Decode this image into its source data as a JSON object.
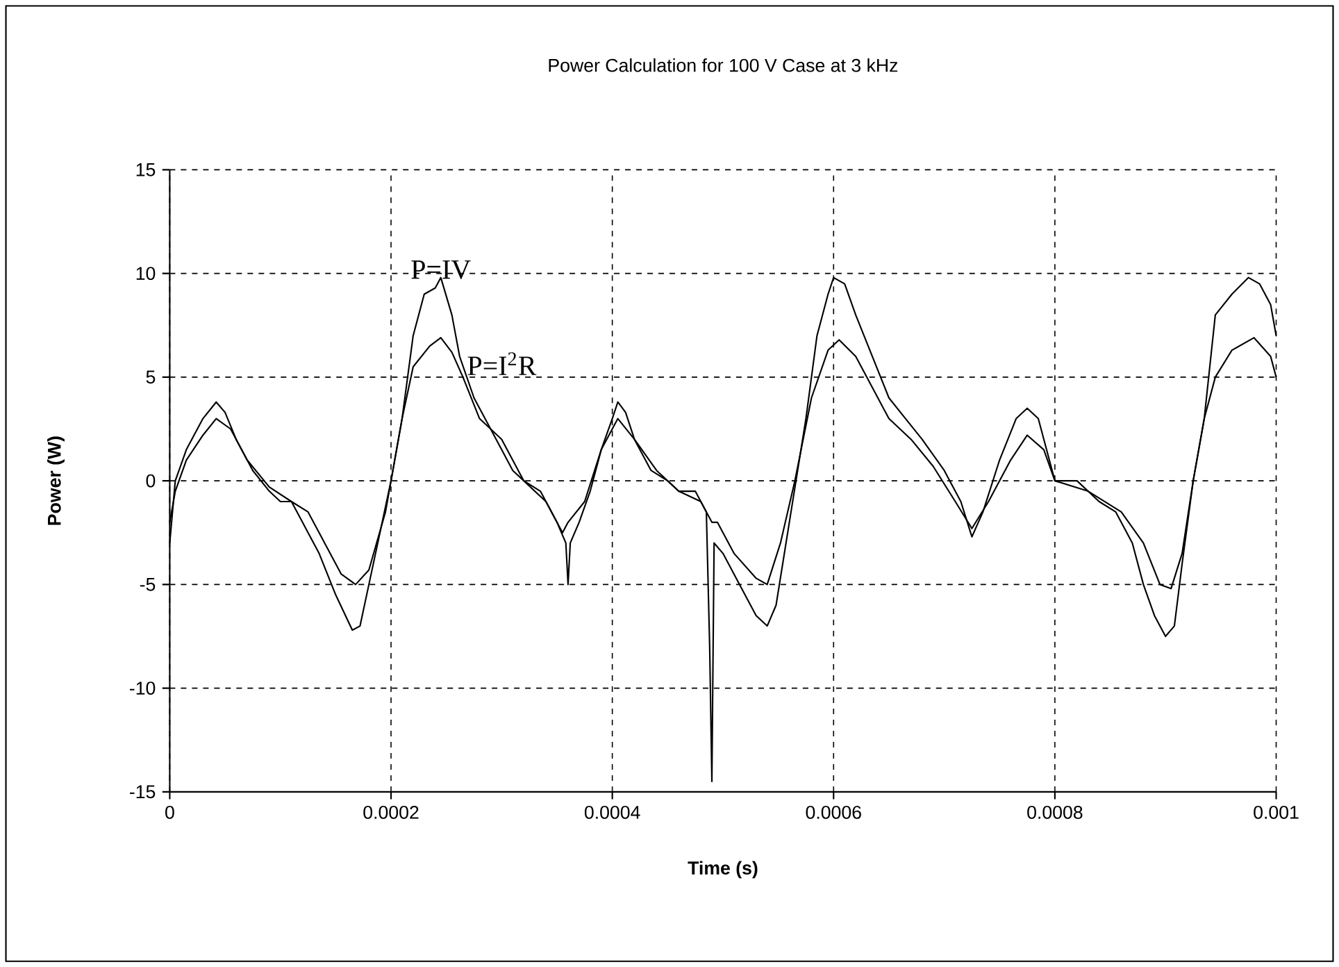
{
  "chart_data": {
    "type": "line",
    "title": "Power Calculation for 100 V Case at 3 kHz",
    "xlabel": "Time (s)",
    "ylabel": "Power (W)",
    "xlim": [
      0,
      0.001
    ],
    "ylim": [
      -15,
      15
    ],
    "xticks": [
      0,
      0.0002,
      0.0004,
      0.0006,
      0.0008,
      0.001
    ],
    "yticks": [
      -15,
      -10,
      -5,
      0,
      5,
      10,
      15
    ],
    "grid": true,
    "marker": "none",
    "line_style": "solid",
    "series": [
      {
        "name": "P=IV",
        "color": "#000000",
        "x": [
          0,
          5e-06,
          1.5e-05,
          3e-05,
          4.2e-05,
          5e-05,
          6e-05,
          7.5e-05,
          9e-05,
          0.0001,
          0.00011,
          0.00012,
          0.000135,
          0.00015,
          0.000165,
          0.000172,
          0.00018,
          0.00019,
          0.0002,
          0.00021,
          0.00022,
          0.00023,
          0.00024,
          0.000245,
          0.000255,
          0.000262,
          0.000275,
          0.00029,
          0.0003,
          0.00031,
          0.00032,
          0.000335,
          0.00035,
          0.000358,
          0.00036,
          0.000362,
          0.00037,
          0.00038,
          0.00039,
          0.0004,
          0.000405,
          0.000412,
          0.00042,
          0.000435,
          0.00045,
          0.00046,
          0.000475,
          0.000485,
          0.000488,
          0.00049,
          0.000492,
          0.0005,
          0.00051,
          0.00053,
          0.00054,
          0.000548,
          0.00056,
          0.000575,
          0.000585,
          0.000595,
          0.0006,
          0.00061,
          0.00062,
          0.000635,
          0.00065,
          0.000665,
          0.00068,
          0.0007,
          0.000715,
          0.000725,
          0.000735,
          0.00075,
          0.000765,
          0.000775,
          0.000785,
          0.000795,
          0.0008,
          0.00082,
          0.00084,
          0.000855,
          0.00087,
          0.00088,
          0.00089,
          0.0009,
          0.000908,
          0.000915,
          0.000925,
          0.000935,
          0.000945,
          0.00096,
          0.000975,
          0.000985,
          0.000995,
          0.001
        ],
        "values": [
          -3,
          0,
          1.5,
          3,
          3.8,
          3.3,
          2,
          0.5,
          -0.5,
          -1,
          -1,
          -2,
          -3.5,
          -5.5,
          -7.2,
          -7,
          -5,
          -2.5,
          0,
          3,
          7,
          9,
          9.3,
          9.8,
          8,
          6,
          4,
          2.5,
          1.5,
          0.5,
          0,
          -0.5,
          -2,
          -3,
          -5,
          -3,
          -2,
          -0.5,
          1.5,
          3,
          3.8,
          3.3,
          2,
          0.5,
          0,
          -0.5,
          -0.5,
          -1.5,
          -8,
          -14.5,
          -3,
          -3.5,
          -4.5,
          -6.5,
          -7,
          -6,
          -2,
          3,
          7,
          9,
          9.8,
          9.5,
          8,
          6,
          4,
          3,
          2,
          0.5,
          -1,
          -2.7,
          -1.5,
          1,
          3,
          3.5,
          3,
          1,
          0,
          0,
          -1,
          -1.5,
          -3,
          -5,
          -6.5,
          -7.5,
          -7,
          -4,
          0,
          3,
          8,
          9,
          9.8,
          9.5,
          8.5,
          7
        ]
      },
      {
        "name": "P=I$^{2}$R",
        "color": "#000000",
        "x": [
          0,
          5e-06,
          1.5e-05,
          3e-05,
          4.2e-05,
          5.5e-05,
          7e-05,
          9e-05,
          0.00011,
          0.000125,
          0.00014,
          0.000155,
          0.000168,
          0.00018,
          0.000195,
          0.0002,
          0.00021,
          0.00022,
          0.000235,
          0.000245,
          0.000255,
          0.000265,
          0.00028,
          0.0003,
          0.00032,
          0.00034,
          0.000355,
          0.00036,
          0.000375,
          0.00039,
          0.000405,
          0.00042,
          0.00044,
          0.00046,
          0.00048,
          0.00049,
          0.000495,
          0.00051,
          0.00053,
          0.00054,
          0.000552,
          0.000565,
          0.00058,
          0.000595,
          0.000605,
          0.00062,
          0.000635,
          0.00065,
          0.00067,
          0.00069,
          0.00071,
          0.000725,
          0.00074,
          0.00076,
          0.000775,
          0.00079,
          0.0008,
          0.00083,
          0.00086,
          0.00088,
          0.000895,
          0.000905,
          0.000915,
          0.000925,
          0.000935,
          0.000945,
          0.00096,
          0.00098,
          0.000995,
          0.001
        ],
        "values": [
          -2,
          -0.5,
          1,
          2.2,
          3,
          2.5,
          1,
          -0.3,
          -1,
          -1.5,
          -3,
          -4.5,
          -5,
          -4.3,
          -1.5,
          0,
          3,
          5.5,
          6.5,
          6.9,
          6.2,
          5,
          3,
          2,
          0,
          -1,
          -2.5,
          -2,
          -1,
          1.5,
          3,
          2,
          0.5,
          -0.5,
          -1,
          -2,
          -2,
          -3.5,
          -4.7,
          -5,
          -3,
          0,
          4,
          6.3,
          6.8,
          6,
          4.5,
          3,
          2,
          0.7,
          -1,
          -2.3,
          -1,
          1,
          2.2,
          1.5,
          0,
          -0.5,
          -1.5,
          -3,
          -5,
          -5.2,
          -3.5,
          0,
          3,
          5,
          6.3,
          6.9,
          6,
          5
        ]
      }
    ]
  }
}
